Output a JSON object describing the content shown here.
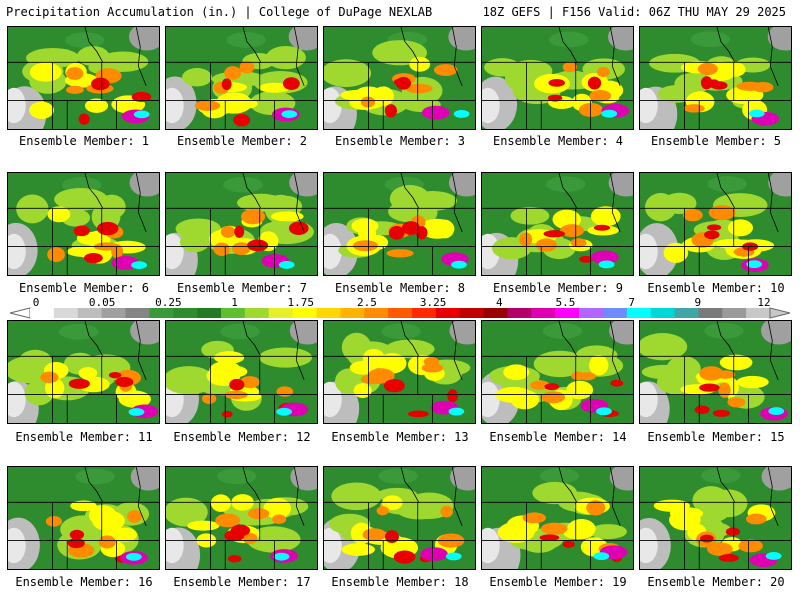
{
  "header": {
    "title": "Precipitation Accumulation (in.) | College of DuPage NEXLAB",
    "run_info": "18Z GEFS | F156 Valid: 06Z THU MAY 29 2025"
  },
  "legend": {
    "values": [
      "0",
      "0.05",
      "0.25",
      "1",
      "1.75",
      "2.5",
      "3.25",
      "4",
      "5.5",
      "7",
      "9",
      "12"
    ],
    "colors": [
      "#ffffff",
      "#d9d9d9",
      "#bdbdbd",
      "#a0a0a0",
      "#858585",
      "#3a9a3a",
      "#2e8b2e",
      "#237a23",
      "#5fbf2f",
      "#9fd92f",
      "#e6f02a",
      "#ffff00",
      "#ffd700",
      "#ffb300",
      "#ff8c00",
      "#ff5a00",
      "#ff2a00",
      "#e60000",
      "#c00000",
      "#990000",
      "#b3006b",
      "#e000b3",
      "#ff00ff",
      "#b266ff",
      "#6f8cff",
      "#00ffff",
      "#00d8d8",
      "#3fa7a7",
      "#7a7a7a",
      "#9a9a9a",
      "#c8c8c8"
    ]
  },
  "members": [
    {
      "label": "Ensemble Member: 1"
    },
    {
      "label": "Ensemble Member: 2"
    },
    {
      "label": "Ensemble Member: 3"
    },
    {
      "label": "Ensemble Member: 4"
    },
    {
      "label": "Ensemble Member: 5"
    },
    {
      "label": "Ensemble Member: 6"
    },
    {
      "label": "Ensemble Member: 7"
    },
    {
      "label": "Ensemble Member: 8"
    },
    {
      "label": "Ensemble Member: 9"
    },
    {
      "label": "Ensemble Member: 10"
    },
    {
      "label": "Ensemble Member: 11"
    },
    {
      "label": "Ensemble Member: 12"
    },
    {
      "label": "Ensemble Member: 13"
    },
    {
      "label": "Ensemble Member: 14"
    },
    {
      "label": "Ensemble Member: 15"
    },
    {
      "label": "Ensemble Member: 16"
    },
    {
      "label": "Ensemble Member: 17"
    },
    {
      "label": "Ensemble Member: 18"
    },
    {
      "label": "Ensemble Member: 19"
    },
    {
      "label": "Ensemble Member: 20"
    }
  ]
}
